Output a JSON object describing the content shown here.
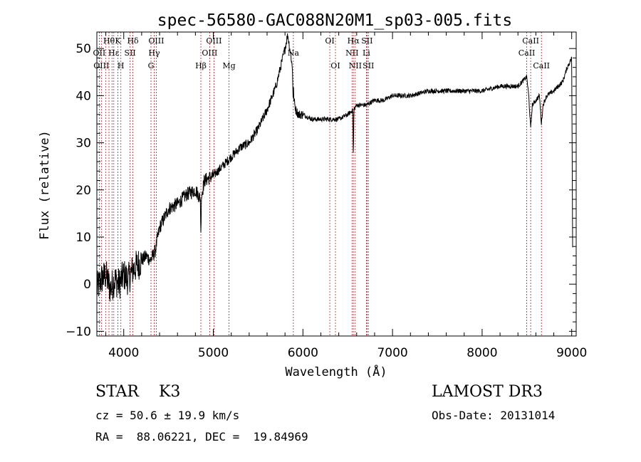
{
  "chart_data": {
    "type": "line",
    "title": "spec-56580-GAC088N20M1_sp03-005.fits",
    "xlabel": "Wavelength (Å)",
    "ylabel": "Flux (relative)",
    "xlim": [
      3700,
      9050
    ],
    "ylim": [
      -11,
      53.5
    ],
    "xticks": [
      4000,
      5000,
      6000,
      7000,
      8000,
      9000
    ],
    "yticks": [
      -10,
      0,
      10,
      20,
      30,
      40,
      50
    ],
    "xtick_labels": [
      "4000",
      "5000",
      "6000",
      "7000",
      "8000",
      "9000"
    ],
    "ytick_labels": [
      "−10",
      "0",
      "10",
      "20",
      "30",
      "40",
      "50"
    ],
    "series": [
      {
        "name": "flux",
        "x": [
          3700,
          3750,
          3800,
          3850,
          3900,
          3950,
          4000,
          4050,
          4100,
          4150,
          4200,
          4250,
          4300,
          4350,
          4400,
          4450,
          4500,
          4600,
          4700,
          4800,
          4860,
          4900,
          5000,
          5100,
          5200,
          5300,
          5400,
          5500,
          5600,
          5700,
          5750,
          5800,
          5830,
          5870,
          5890,
          5900,
          5920,
          5950,
          6000,
          6100,
          6200,
          6300,
          6400,
          6500,
          6563,
          6600,
          6700,
          6800,
          6900,
          7000,
          7200,
          7400,
          7600,
          7800,
          8000,
          8200,
          8400,
          8498,
          8520,
          8542,
          8560,
          8600,
          8640,
          8662,
          8680,
          8720,
          8800,
          8900,
          8950,
          9000,
          9010
        ],
        "y": [
          -1,
          1,
          2,
          -1,
          1,
          0,
          2,
          1,
          3,
          4,
          5,
          6,
          5,
          7,
          12,
          14,
          16,
          17,
          19,
          20,
          18,
          22,
          23,
          25,
          27,
          29,
          30,
          33,
          37,
          42,
          46,
          50,
          53,
          48,
          44,
          39,
          37,
          36,
          36,
          35,
          35,
          35,
          35,
          36,
          37,
          38,
          38,
          39,
          39,
          40,
          40,
          41,
          41,
          41,
          41,
          42,
          42,
          44,
          40,
          33,
          38,
          39,
          40,
          34,
          38,
          40,
          41,
          43,
          46,
          48,
          8
        ]
      }
    ],
    "noise_amplitude": [
      {
        "from": 3700,
        "to": 4200,
        "amp": 3.5
      },
      {
        "from": 4200,
        "to": 5000,
        "amp": 1.5
      },
      {
        "from": 5000,
        "to": 6000,
        "amp": 1.0
      },
      {
        "from": 6000,
        "to": 9010,
        "amp": 0.5
      }
    ],
    "absorption_dips": [
      {
        "x": 4861,
        "depth": 8
      },
      {
        "x": 6563,
        "depth": 11
      },
      {
        "x": 5890,
        "depth": 4
      }
    ],
    "lines": [
      {
        "wave": 3727,
        "label": "OII",
        "row": 1
      },
      {
        "wave": 3750,
        "label": "OIII",
        "row": 2
      },
      {
        "wave": 3798,
        "label": "",
        "row": 0
      },
      {
        "wave": 3835,
        "label": "Hθ",
        "row": 0
      },
      {
        "wave": 3869,
        "label": "",
        "row": 0
      },
      {
        "wave": 3889,
        "label": "Hε",
        "row": 1
      },
      {
        "wave": 3934,
        "label": "K",
        "row": 0
      },
      {
        "wave": 3968,
        "label": "H",
        "row": 2
      },
      {
        "wave": 4071,
        "label": "SII",
        "row": 1
      },
      {
        "wave": 4102,
        "label": "Hδ",
        "row": 0
      },
      {
        "wave": 4304,
        "label": "G",
        "row": 2
      },
      {
        "wave": 4340,
        "label": "Hγ",
        "row": 1
      },
      {
        "wave": 4363,
        "label": "OIII",
        "row": 0
      },
      {
        "wave": 4861,
        "label": "Hβ",
        "row": 2
      },
      {
        "wave": 4959,
        "label": "OIII",
        "row": 1
      },
      {
        "wave": 5007,
        "label": "OIII",
        "row": 0
      },
      {
        "wave": 5175,
        "label": "Mg",
        "row": 2
      },
      {
        "wave": 5893,
        "label": "Na",
        "row": 1
      },
      {
        "wave": 6300,
        "label": "OI",
        "row": 0
      },
      {
        "wave": 6363,
        "label": "OI",
        "row": 2
      },
      {
        "wave": 6548,
        "label": "NII",
        "row": 1
      },
      {
        "wave": 6563,
        "label": "Hα",
        "row": 0
      },
      {
        "wave": 6584,
        "label": "NII",
        "row": 2
      },
      {
        "wave": 6708,
        "label": "Li",
        "row": 1
      },
      {
        "wave": 6716,
        "label": "SII",
        "row": 0
      },
      {
        "wave": 6731,
        "label": "SII",
        "row": 2
      },
      {
        "wave": 8498,
        "label": "CaII",
        "row": 1
      },
      {
        "wave": 8542,
        "label": "CaII",
        "row": 0
      },
      {
        "wave": 8662,
        "label": "CaII",
        "row": 2
      }
    ]
  },
  "info": {
    "classification": "STAR    K3",
    "cz": "cz = 50.6 ± 19.9 km/s",
    "coords": "RA =  88.06221, DEC =  19.84969",
    "survey": "LAMOST DR3",
    "obs_date": "Obs-Date: 20131014"
  },
  "colors": {
    "axis": "#000000",
    "spectrum": "#000000",
    "line_markers": "#b22222",
    "background": "#ffffff"
  }
}
